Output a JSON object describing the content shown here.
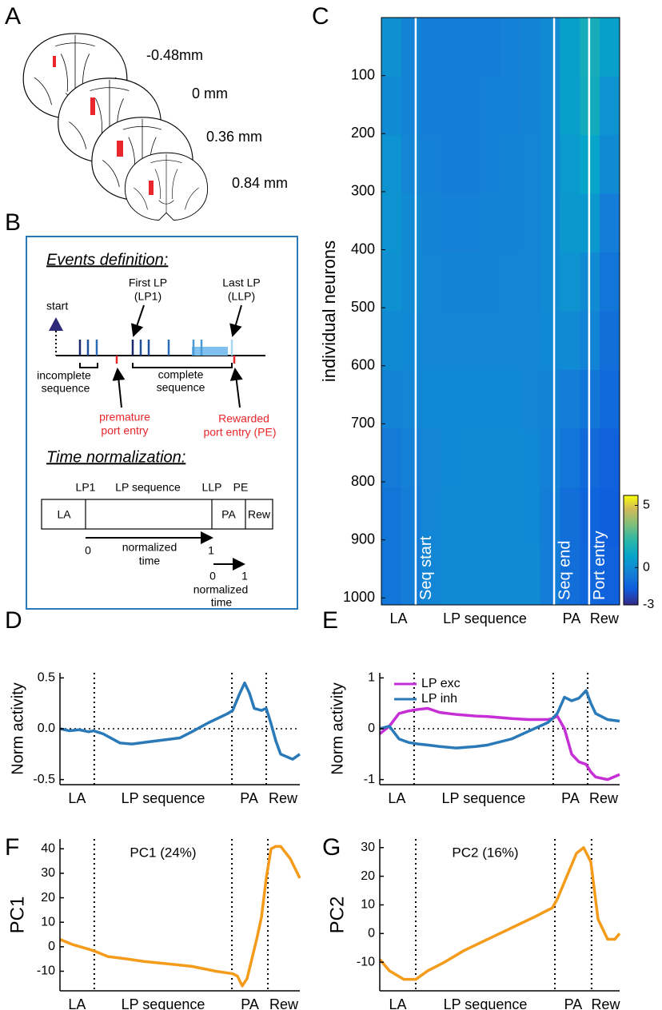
{
  "panels": [
    "A",
    "B",
    "C",
    "D",
    "E",
    "F",
    "G"
  ],
  "panel_a": {
    "levels": [
      "-0.48mm",
      "0 mm",
      "0.36 mm",
      "0.84 mm"
    ]
  },
  "panel_b": {
    "events_title": "Events definition:",
    "start": "start",
    "first_lp": [
      "First LP",
      "(LP1)"
    ],
    "last_lp": [
      "Last LP",
      "(LLP)"
    ],
    "incomplete": [
      "incomplete",
      "sequence"
    ],
    "complete": [
      "complete",
      "sequence"
    ],
    "premature": [
      "premature",
      "port entry"
    ],
    "rewarded": [
      "Rewarded",
      "port entry (PE)"
    ],
    "norm_title": "Time normalization:",
    "top_labels": [
      "LP1",
      "LP sequence",
      "LLP",
      "PE"
    ],
    "box_labels": [
      "LA",
      "PA",
      "Rew"
    ],
    "arrow1": {
      "start": 0,
      "end": 1,
      "label": [
        "normalized",
        "time"
      ]
    },
    "arrow2": {
      "start": 0,
      "end": 1,
      "label": [
        "normalized",
        "time"
      ]
    }
  },
  "chart_data": [
    {
      "type": "heatmap",
      "ylabel": "individual neurons",
      "xlabels": [
        "LA",
        "LP sequence",
        "PA",
        "Rew"
      ],
      "xlim": [
        0,
        100
      ],
      "vlines": [
        14.4,
        72.5,
        87.2
      ],
      "vline_color": "#ffffff",
      "vline_labels": [
        "Seq start",
        "Seq end",
        "Port entry"
      ],
      "ylim": [
        0,
        1012
      ],
      "y_inverted": true,
      "yticks": [
        100,
        200,
        300,
        400,
        500,
        600,
        700,
        800,
        900,
        1000
      ],
      "clim": [
        -3,
        5.8
      ],
      "cticks": [
        -3,
        0,
        5
      ],
      "colormap": "parula",
      "values": [
        [
          0.2,
          -0.3,
          -0.5,
          -0.5,
          -0.5,
          -0.5,
          -0.4,
          -0.3,
          0,
          0.8,
          1.5,
          0.8
        ],
        [
          0,
          -0.3,
          -0.5,
          -0.5,
          -0.5,
          -0.4,
          -0.4,
          -0.3,
          0,
          0.8,
          1.4,
          0.3
        ],
        [
          0.3,
          -0.2,
          -0.4,
          -0.5,
          -0.5,
          -0.4,
          -0.3,
          -0.2,
          0,
          0.6,
          1,
          0
        ],
        [
          0.3,
          0,
          -0.3,
          -0.4,
          -0.4,
          -0.3,
          -0.3,
          -0.2,
          0,
          0.5,
          0.5,
          -0.5
        ],
        [
          0.2,
          0,
          -0.2,
          -0.3,
          -0.3,
          -0.3,
          -0.2,
          -0.2,
          0,
          0.3,
          0,
          -0.8
        ],
        [
          0,
          -0.1,
          -0.2,
          -0.2,
          -0.2,
          -0.2,
          -0.2,
          -0.2,
          -0.1,
          0,
          -0.3,
          -1
        ],
        [
          -0.3,
          -0.2,
          -0.1,
          -0.1,
          -0.1,
          -0.1,
          -0.1,
          -0.2,
          -0.3,
          -0.5,
          -0.8,
          -1.2
        ],
        [
          -0.6,
          -0.4,
          -0.2,
          -0.1,
          0,
          0,
          0,
          -0.1,
          -0.4,
          -0.8,
          -1.2,
          -1.5
        ],
        [
          -0.8,
          -0.5,
          -0.2,
          0,
          0,
          0,
          0,
          -0.1,
          -0.5,
          -1,
          -1.4,
          -1.6
        ],
        [
          -0.8,
          -0.5,
          -0.2,
          0,
          0,
          0,
          0,
          0,
          -0.5,
          -1,
          -1.3,
          -1.5
        ]
      ]
    },
    {
      "type": "line",
      "ylabel": "Norm activity",
      "xlabels": [
        "LA",
        "LP sequence",
        "PA",
        "Rew"
      ],
      "xlim": [
        0,
        100
      ],
      "vlines": [
        14.3,
        71.7,
        86
      ],
      "vline_color": "#000000",
      "hline": 0,
      "ylim": [
        -0.55,
        0.55
      ],
      "yticks": [
        -0.5,
        {
          "value": 0,
          "label": "0.0"
        },
        0.5
      ],
      "x": [
        0,
        4,
        8,
        12,
        14,
        18,
        25,
        30,
        40,
        50,
        55,
        62,
        70,
        72,
        75,
        77,
        79,
        81,
        84,
        86,
        88,
        90,
        92,
        95,
        97,
        100
      ],
      "series": [
        {
          "color": "#2a7ab9",
          "values": [
            0,
            -0.02,
            -0.01,
            -0.03,
            -0.02,
            -0.05,
            -0.14,
            -0.15,
            -0.12,
            -0.09,
            -0.03,
            0.06,
            0.15,
            0.18,
            0.35,
            0.45,
            0.35,
            0.2,
            0.18,
            0.2,
            0.05,
            -0.12,
            -0.25,
            -0.28,
            -0.3,
            -0.25
          ]
        }
      ]
    },
    {
      "type": "line",
      "ylabel": "Norm activity",
      "xlabels": [
        "LA",
        "LP sequence",
        "PA",
        "Rew"
      ],
      "xlim": [
        0,
        100
      ],
      "vlines": [
        14.3,
        72.3,
        86.7
      ],
      "vline_color": "#000000",
      "hline": 0,
      "ylim": [
        -1.1,
        1.1
      ],
      "yticks": [
        -1,
        0,
        1
      ],
      "legend": "upper left",
      "x": [
        0,
        4,
        8,
        12,
        16,
        20,
        25,
        32,
        40,
        45,
        55,
        62,
        70,
        72,
        74,
        77,
        80,
        83,
        86,
        88,
        90,
        95,
        100
      ],
      "series": [
        {
          "name": "LP exc",
          "color": "#c62fd6",
          "values": [
            -0.1,
            0.05,
            0.3,
            0.35,
            0.38,
            0.4,
            0.32,
            0.28,
            0.25,
            0.24,
            0.2,
            0.18,
            0.18,
            0.2,
            0.25,
            0,
            -0.5,
            -0.65,
            -0.7,
            -0.85,
            -0.95,
            -1,
            -0.9
          ]
        },
        {
          "name": "LP inh",
          "color": "#2a7ab9",
          "values": [
            0,
            0.05,
            -0.2,
            -0.27,
            -0.3,
            -0.32,
            -0.35,
            -0.38,
            -0.35,
            -0.32,
            -0.2,
            -0.05,
            0.12,
            0.2,
            0.3,
            0.62,
            0.55,
            0.6,
            0.75,
            0.5,
            0.3,
            0.18,
            0.15
          ]
        }
      ]
    },
    {
      "type": "line",
      "ylabel": "PC1",
      "annotation": "PC1 (24%)",
      "xlabels": [
        "LA",
        "LP sequence",
        "PA",
        "Rew"
      ],
      "xlim": [
        0,
        100
      ],
      "vlines": [
        14.3,
        71.7,
        86.7
      ],
      "vline_color": "#000000",
      "ylim": [
        -18,
        44
      ],
      "yticks": [
        -10,
        0,
        10,
        20,
        30,
        40
      ],
      "x": [
        0,
        5,
        12,
        15,
        20,
        28,
        35,
        45,
        55,
        65,
        72,
        74,
        76,
        78,
        80,
        82,
        84,
        86,
        88,
        90,
        92,
        96,
        100
      ],
      "series": [
        {
          "color": "#f59b1b",
          "values": [
            3,
            1,
            -1,
            -2,
            -4,
            -5,
            -6,
            -7,
            -8,
            -10,
            -11,
            -12,
            -16,
            -13,
            -5,
            3,
            12,
            28,
            40,
            41,
            41,
            36,
            28
          ]
        }
      ]
    },
    {
      "type": "line",
      "ylabel": "PC2",
      "annotation": "PC2 (16%)",
      "xlabels": [
        "LA",
        "LP sequence",
        "PA",
        "Rew"
      ],
      "xlim": [
        0,
        100
      ],
      "vlines": [
        15,
        73,
        88.3
      ],
      "vline_color": "#000000",
      "ylim": [
        -20,
        33
      ],
      "yticks": [
        -10,
        0,
        10,
        20,
        30
      ],
      "x": [
        0,
        4,
        10,
        15,
        20,
        27,
        35,
        45,
        55,
        65,
        72,
        74,
        78,
        82,
        85,
        88,
        91,
        95,
        98,
        100
      ],
      "series": [
        {
          "color": "#f59b1b",
          "values": [
            -9,
            -13,
            -16,
            -16,
            -13,
            -10,
            -6,
            -2,
            2,
            6,
            9,
            12,
            20,
            28,
            30,
            25,
            5,
            -2,
            -2,
            0
          ]
        }
      ]
    }
  ]
}
